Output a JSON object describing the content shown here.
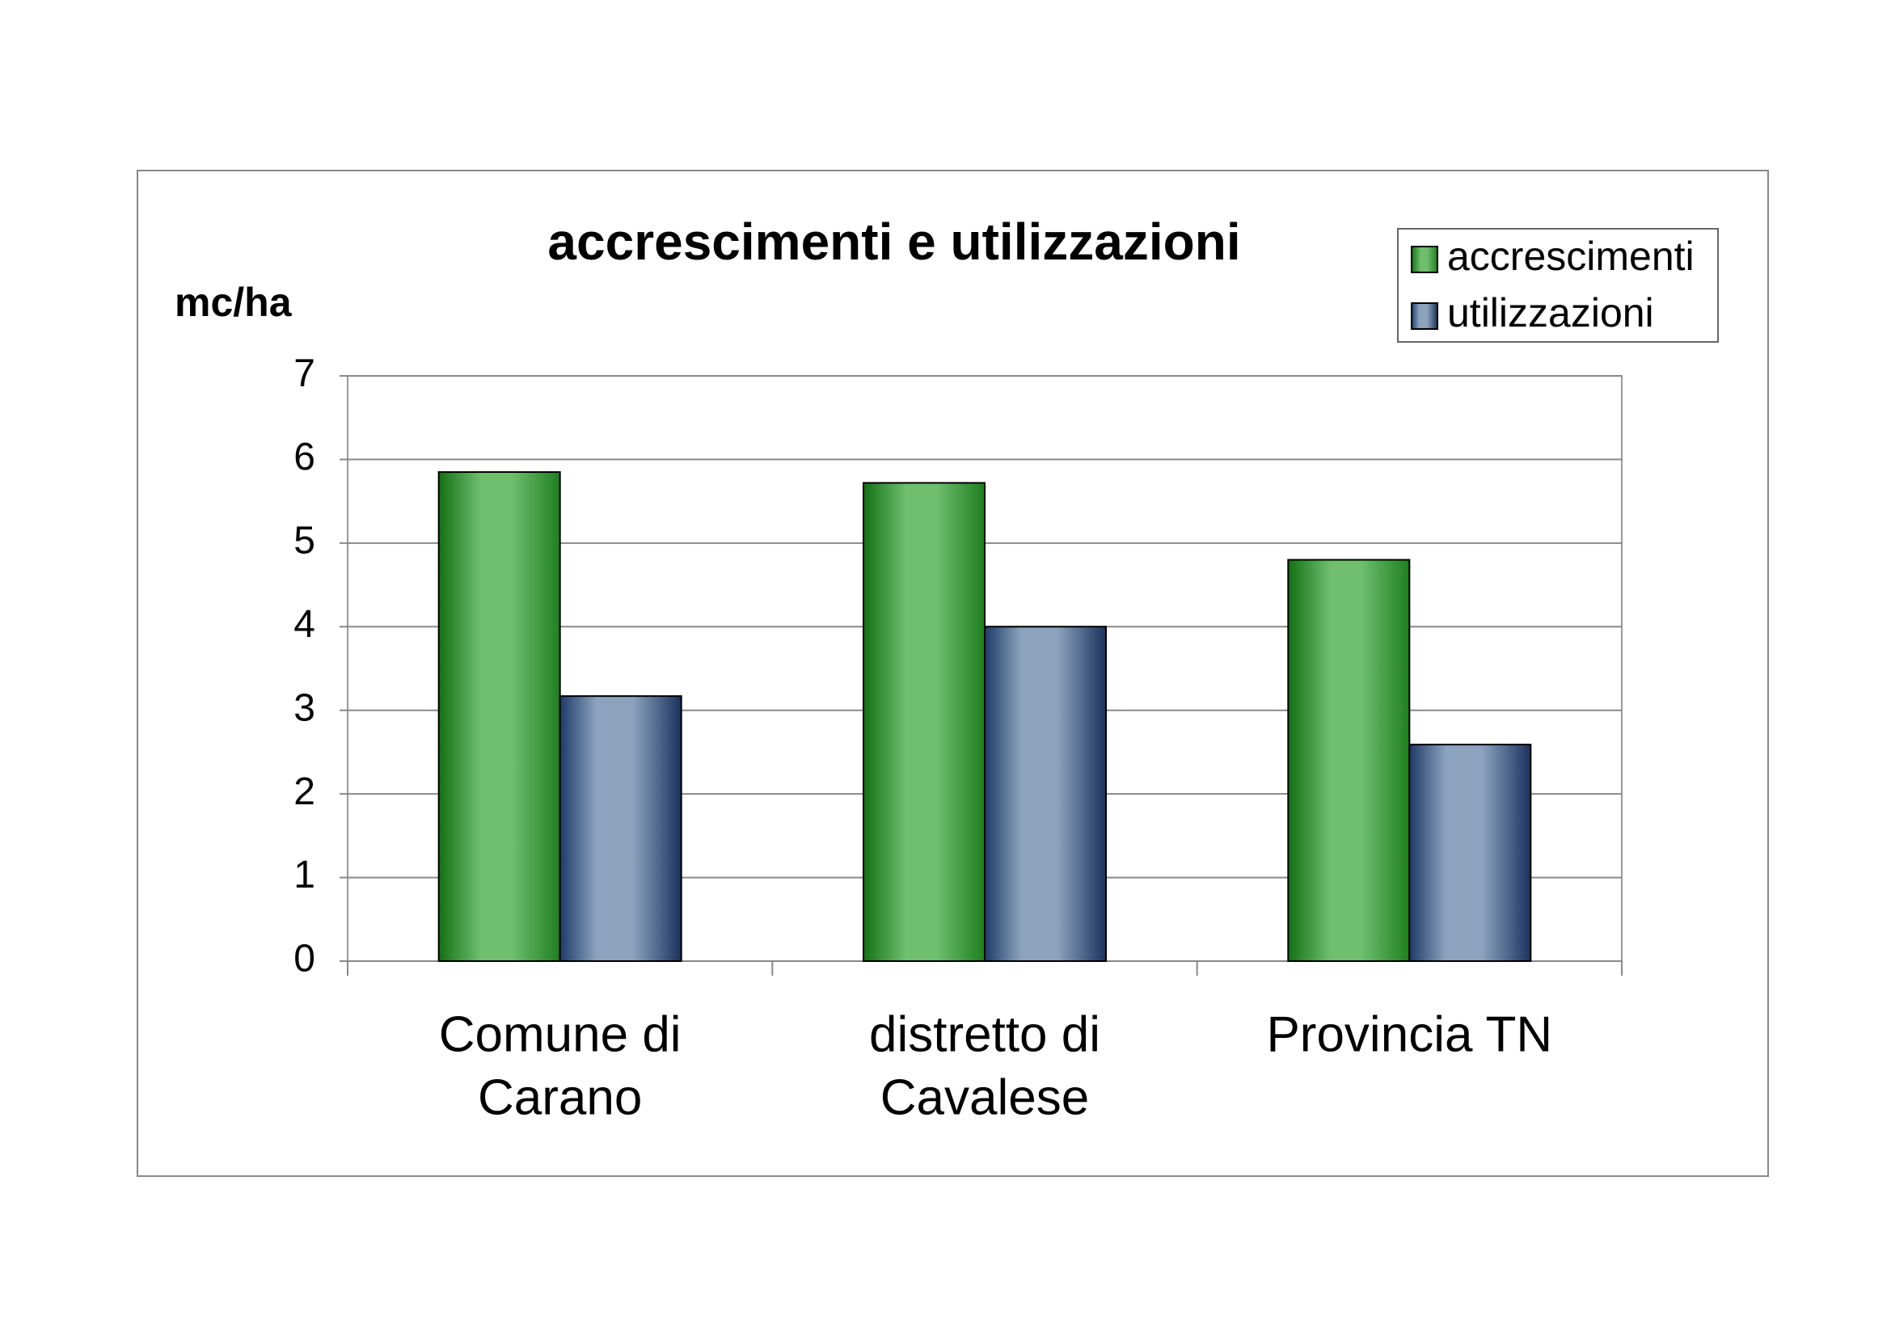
{
  "chart_data": {
    "type": "bar",
    "title": "accrescimenti e utilizzazioni",
    "y_label": "mc/ha",
    "categories": [
      [
        "Comune di",
        "Carano"
      ],
      [
        "distretto di",
        "Cavalese"
      ],
      [
        "Provincia TN"
      ]
    ],
    "series": [
      {
        "name": "accrescimenti",
        "color": "#3f9a3f",
        "values": [
          5.85,
          5.72,
          4.8
        ]
      },
      {
        "name": "utilizzazioni",
        "color": "#5a7398",
        "values": [
          3.17,
          4.0,
          2.59
        ]
      }
    ],
    "ylim": [
      0,
      7
    ],
    "yticks": [
      0,
      1,
      2,
      3,
      4,
      5,
      6,
      7
    ],
    "grid": true,
    "legend": "top-right"
  }
}
